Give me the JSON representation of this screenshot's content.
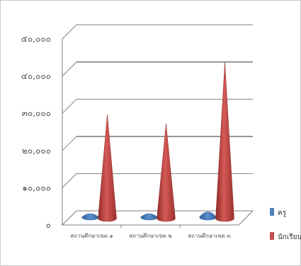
{
  "chart_data": {
    "type": "bar",
    "shape": "cone",
    "title": "",
    "xlabel": "",
    "ylabel": "",
    "ylim": [
      0,
      50000
    ],
    "y_ticks": [
      0,
      10000,
      20000,
      30000,
      40000,
      50000
    ],
    "y_tick_labels": [
      "๐",
      "๑๐,๐๐๐",
      "๒๐,๐๐๐",
      "๓๐,๐๐๐",
      "๔๐,๐๐๐",
      "๕๐,๐๐๐"
    ],
    "categories": [
      "สถานศึกษาเขต ๑",
      "สถานศึกษาเขต ๒",
      "สถานศึกษาเขต ๓"
    ],
    "series": [
      {
        "name": "ครู",
        "values": [
          1500,
          1500,
          2500
        ],
        "color": "#4f81bd"
      },
      {
        "name": "นักเรียน",
        "values": [
          28000,
          25500,
          42000
        ],
        "color": "#c0504d"
      }
    ],
    "grid": true,
    "legend": "right"
  }
}
